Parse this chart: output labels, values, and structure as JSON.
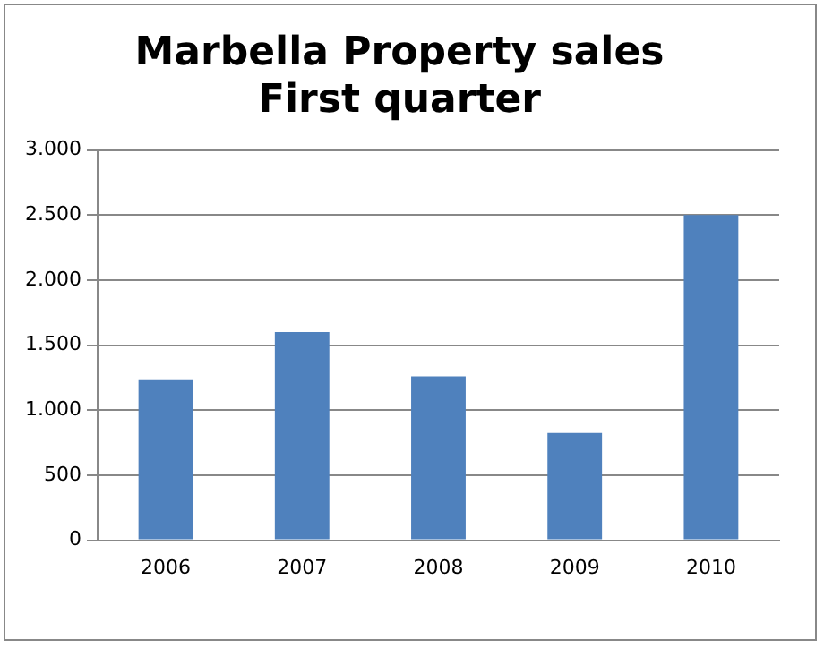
{
  "chart_data": {
    "type": "bar",
    "title": "Marbella Property sales\nFirst quarter",
    "categories": [
      "2006",
      "2007",
      "2008",
      "2009",
      "2010"
    ],
    "values": [
      1230,
      1600,
      1260,
      825,
      2500
    ],
    "color": "#4f81bd",
    "ylim": [
      0,
      3000
    ],
    "yticks": [
      {
        "value": 0,
        "label": "0"
      },
      {
        "value": 500,
        "label": "500"
      },
      {
        "value": 1000,
        "label": "1.000"
      },
      {
        "value": 1500,
        "label": "1.500"
      },
      {
        "value": 2000,
        "label": "2.000"
      },
      {
        "value": 2500,
        "label": "2.500"
      },
      {
        "value": 3000,
        "label": "3.000"
      }
    ],
    "grid": "y"
  }
}
